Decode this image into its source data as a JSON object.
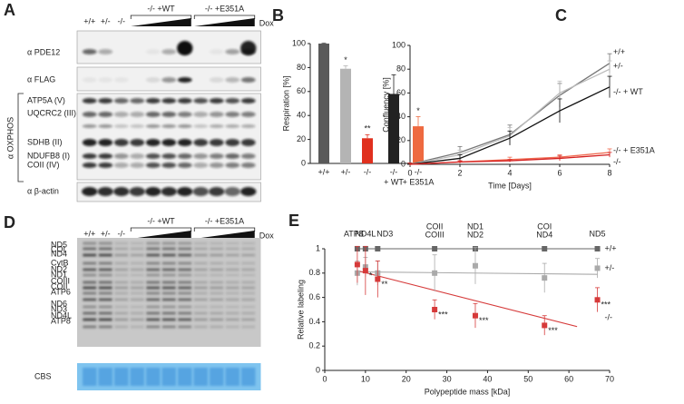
{
  "panel_A": {
    "letter": "A",
    "genotypes": [
      "+/+",
      "+/-",
      "-/-"
    ],
    "groups": [
      "-/- +WT",
      "-/- +E351A"
    ],
    "dox": "Dox",
    "antibodies": [
      "α PDE12",
      "α FLAG",
      "α OXPHOS",
      "α β-actin"
    ],
    "oxphos_bands": [
      "ATP5A (V)",
      "UQCRC2 (III)",
      "SDHB (II)",
      "NDUFB8 (I)",
      "COII (IV)"
    ]
  },
  "panel_D": {
    "letter": "D",
    "genotypes": [
      "+/+",
      "+/-",
      "-/-"
    ],
    "groups": [
      "-/- +WT",
      "-/- +E351A"
    ],
    "dox": "Dox",
    "bands": [
      "ND5",
      "COI",
      "ND4",
      "CytB",
      "ND2",
      "ND1",
      "COIII",
      "COII",
      "ATP6",
      "ND6",
      "ND3",
      "ND4L",
      "ATP8"
    ],
    "stain": "CBS"
  },
  "chart_data": [
    {
      "letter": "B",
      "type": "bar",
      "ylabel": "Respiration [%]",
      "categories": [
        "+/+",
        "+/-",
        "-/-",
        "-/-",
        "-/-"
      ],
      "subcategories": [
        null,
        null,
        null,
        "+ WT",
        "+ E351A"
      ],
      "values": [
        100,
        79,
        21,
        58,
        31
      ],
      "errors": [
        0.5,
        2.5,
        3,
        16,
        8
      ],
      "significance": [
        null,
        "*",
        "**",
        null,
        "*"
      ],
      "colors": [
        "#5a5a5a",
        "#b4b4b4",
        "#e0301e",
        "#222222",
        "#ee6a40"
      ],
      "ylim": [
        0,
        100
      ],
      "yticks": [
        0,
        20,
        40,
        60,
        80,
        100
      ]
    },
    {
      "letter": "C",
      "type": "line",
      "xlabel": "Time [Days]",
      "ylabel": "Confluency [%]",
      "x": [
        0,
        2,
        4,
        6,
        8
      ],
      "xlim": [
        0,
        8
      ],
      "xticks": [
        0,
        2,
        4,
        6,
        8
      ],
      "ylim": [
        0,
        100
      ],
      "yticks": [
        0,
        20,
        40,
        60,
        80,
        100
      ],
      "series": [
        {
          "name": "+/+",
          "color": "#777777",
          "values": [
            0,
            10,
            25,
            58,
            85
          ],
          "errors": [
            1,
            5,
            8,
            10,
            8
          ]
        },
        {
          "name": "+/-",
          "color": "#bbbbbb",
          "values": [
            0,
            8,
            24,
            60,
            80
          ],
          "errors": [
            1,
            4,
            7,
            10,
            7
          ]
        },
        {
          "name": "-/- + WT",
          "color": "#111111",
          "values": [
            0,
            5,
            22,
            45,
            65
          ],
          "errors": [
            1,
            3,
            6,
            10,
            9
          ]
        },
        {
          "name": "-/- + E351A",
          "color": "#f06a50",
          "values": [
            0,
            2,
            4,
            6,
            10
          ],
          "errors": [
            1,
            1,
            2,
            2,
            3
          ]
        },
        {
          "name": "-/-",
          "color": "#d42020",
          "values": [
            0,
            2,
            3,
            5,
            8
          ],
          "errors": [
            1,
            1,
            1,
            2,
            2
          ]
        }
      ]
    },
    {
      "letter": "E",
      "type": "scatter",
      "xlabel": "Polypeptide mass [kDa]",
      "ylabel": "Relative labeling",
      "xlim": [
        0,
        70
      ],
      "xticks": [
        0,
        10,
        20,
        30,
        40,
        50,
        60,
        70
      ],
      "ylim": [
        0,
        1
      ],
      "yticks": [
        0,
        0.2,
        0.4,
        0.6,
        0.8,
        1
      ],
      "x": [
        8,
        10,
        13,
        27,
        37,
        54,
        67
      ],
      "top_labels": [
        [
          "ATP8"
        ],
        [
          "ND4L"
        ],
        [
          "ND3"
        ],
        [
          "COII",
          "COIII"
        ],
        [
          "ND1",
          "ND2"
        ],
        [
          "COI",
          "ND4"
        ],
        [
          "ND5"
        ]
      ],
      "series": [
        {
          "name": "+/+",
          "color": "#666666",
          "values": [
            1,
            1,
            1,
            1,
            1,
            1,
            1
          ]
        },
        {
          "name": "+/-",
          "color": "#aaaaaa",
          "values": [
            0.8,
            0.85,
            0.8,
            0.8,
            0.86,
            0.76,
            0.84
          ],
          "errors": [
            0.1,
            0.08,
            0.1,
            0.15,
            0.15,
            0.12,
            0.08
          ]
        },
        {
          "name": "-/-",
          "color": "#d63a3a",
          "values": [
            0.87,
            0.82,
            0.75,
            0.5,
            0.45,
            0.37,
            0.58
          ],
          "errors": [
            0.15,
            0.2,
            0.15,
            0.08,
            0.1,
            0.08,
            0.1
          ],
          "significance": [
            null,
            "*",
            "**",
            "***",
            "***",
            "***",
            "***"
          ]
        }
      ],
      "fits": [
        {
          "color": "#aaaaaa",
          "x": [
            8,
            67
          ],
          "values": [
            0.81,
            0.79
          ]
        },
        {
          "color": "#d63a3a",
          "x": [
            8,
            62
          ],
          "values": [
            0.82,
            0.36
          ]
        }
      ]
    }
  ]
}
